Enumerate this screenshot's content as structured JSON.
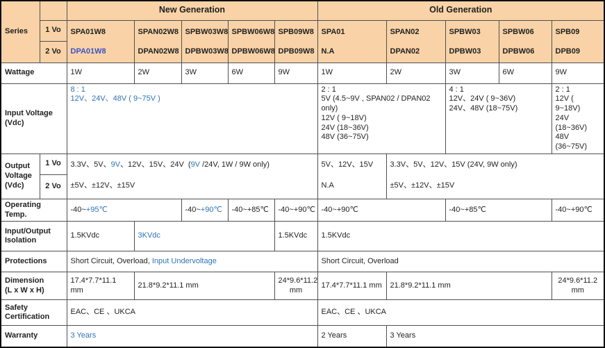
{
  "colors": {
    "header_bg": "#F9D3A7",
    "accent_blue": "#2E74B5",
    "product_indigo": "#3D51C5",
    "grid_border": "#4f4f4f"
  },
  "header": {
    "series": "Series",
    "vo1": "1 Vo",
    "vo2": "2 Vo",
    "new_generation": "New Generation",
    "old_generation": "Old Generation",
    "new_products": [
      {
        "vo1": "SPA01W8",
        "vo2": "DPA01W8"
      },
      {
        "vo1": "SPAN02W8",
        "vo2": "DPAN02W8"
      },
      {
        "vo1": "SPBW03W8",
        "vo2": "DPBW03W8"
      },
      {
        "vo1": "SPBW06W8",
        "vo2": "DPBW06W8"
      },
      {
        "vo1": "SPB09W8",
        "vo2": "DPB09W8"
      }
    ],
    "old_products": [
      {
        "vo1": "SPA01",
        "vo2": "N.A"
      },
      {
        "vo1": "SPAN02",
        "vo2": "DPAN02"
      },
      {
        "vo1": "SPBW03",
        "vo2": "DPBW03"
      },
      {
        "vo1": "SPBW06",
        "vo2": "DPBW06"
      },
      {
        "vo1": "SPB09",
        "vo2": "DPB09"
      }
    ]
  },
  "wattage": {
    "label": "Wattage",
    "new": [
      "1W",
      "2W",
      "3W",
      "6W",
      "9W"
    ],
    "old": [
      "1W",
      "2W",
      "3W",
      "6W",
      "9W"
    ]
  },
  "input_voltage": {
    "label": "Input Voltage\n(Vdc)",
    "new_all": "8 : 1\n12V、24V、48V ( 9~75V )",
    "old_a": "2 : 1\n5V  (4.5~9V , SPAN02 / DPAN02 only)\n12V ( 9~18V)\n24V (18~36V)\n48V (36~75V)",
    "old_b": "4 : 1\n12V、24V ( 9~36V)\n24V、48V (18~75V)",
    "old_c": "2 : 1\n12V ( 9~18V)\n24V (18~36V)\n48V (36~75V)"
  },
  "output_voltage": {
    "label": "Output\nVoltage\n(Vdc)",
    "vo1": "1 Vo",
    "vo2": "2 Vo",
    "new_1vo_segments": [
      {
        "text": "3.3V、5V、"
      },
      {
        "text": "9V",
        "blue": true
      },
      {
        "text": "、12V、15V、24V  ("
      },
      {
        "text": "9V",
        "blue": true
      },
      {
        "text": " /24V, 1W / 9W only)"
      }
    ],
    "new_2vo": "±5V、±12V、±15V",
    "old_a_1vo": "5V、12V、15V",
    "old_a_2vo": "N.A",
    "old_b_1vo": "3.3V、5V、12V、15V (24V, 9W only)",
    "old_b_2vo": "±5V、±12V、±15V"
  },
  "operating_temp": {
    "label": "Operating Temp.",
    "new_a_segments": [
      {
        "text": "-40~"
      },
      {
        "text": "+95℃",
        "blue": true
      }
    ],
    "new_b_segments": [
      {
        "text": "-40~"
      },
      {
        "text": "+90℃",
        "blue": true
      }
    ],
    "new_c": "-40~+85℃",
    "new_d": "-40~+90℃",
    "old_a": "-40~+90℃",
    "old_b": "-40~+85℃",
    "old_c": "-40~+90℃"
  },
  "isolation": {
    "label": "Input/Output\nIsolation",
    "new_a": "1.5KVdc",
    "new_b": "3KVdc",
    "new_c": "1.5KVdc",
    "old": "1.5KVdc"
  },
  "protections": {
    "label": "Protections",
    "new_segments": [
      {
        "text": "Short Circuit, Overload, "
      },
      {
        "text": "Input Undervoltage",
        "blue": true
      }
    ],
    "old": "Short Circuit, Overload"
  },
  "dimension": {
    "label": "Dimension\n(L x W x H)",
    "new_a": "17.4*7.7*11.1 mm",
    "new_b": "21.8*9.2*11.1 mm",
    "new_c": "24*9.6*11.2 mm",
    "old_a": "17.4*7.7*11.1 mm",
    "old_b": "21.8*9.2*11.1 mm",
    "old_c": "24*9.6*11.2 mm"
  },
  "safety": {
    "label": "Safety\nCertification",
    "new": "EAC、CE 、UKCA",
    "old": "EAC、CE 、UKCA"
  },
  "warranty": {
    "label": "Warranty",
    "new": "3 Years",
    "old_a": "2 Years",
    "old_b": "3 Years"
  }
}
